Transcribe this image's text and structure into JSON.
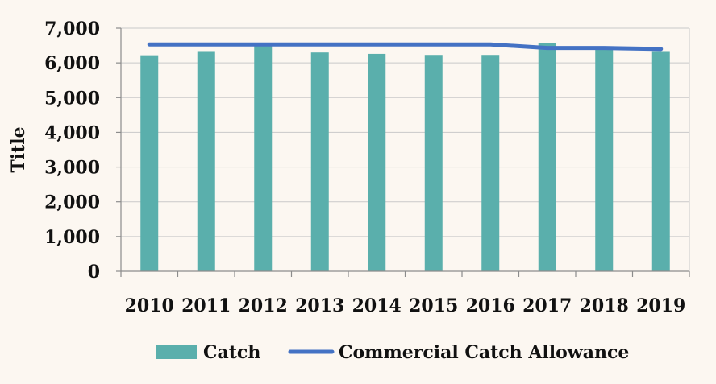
{
  "chart_data": {
    "type": "bar",
    "categories": [
      "2010",
      "2011",
      "2012",
      "2013",
      "2014",
      "2015",
      "2016",
      "2017",
      "2018",
      "2019"
    ],
    "series": [
      {
        "name": "Catch",
        "kind": "bar",
        "color": "#5aafac",
        "values": [
          6220,
          6340,
          6500,
          6300,
          6260,
          6230,
          6230,
          6570,
          6410,
          6340
        ]
      },
      {
        "name": "Commercial Catch Allowance",
        "kind": "line",
        "color": "#4472c4",
        "values": [
          6530,
          6530,
          6530,
          6530,
          6530,
          6530,
          6530,
          6430,
          6430,
          6400
        ]
      }
    ],
    "ylabel": "Title",
    "ylim": [
      0,
      7000
    ],
    "yticks": [
      0,
      1000,
      2000,
      3000,
      4000,
      5000,
      6000,
      7000
    ],
    "ytick_labels": [
      "0",
      "1,000",
      "2,000",
      "3,000",
      "4,000",
      "5,000",
      "6,000",
      "7,000"
    ],
    "grid": true,
    "legend_position": "bottom"
  },
  "colors": {
    "background": "#fcf7f1",
    "grid": "#c9c9c9",
    "axis": "#8c8c8c"
  }
}
